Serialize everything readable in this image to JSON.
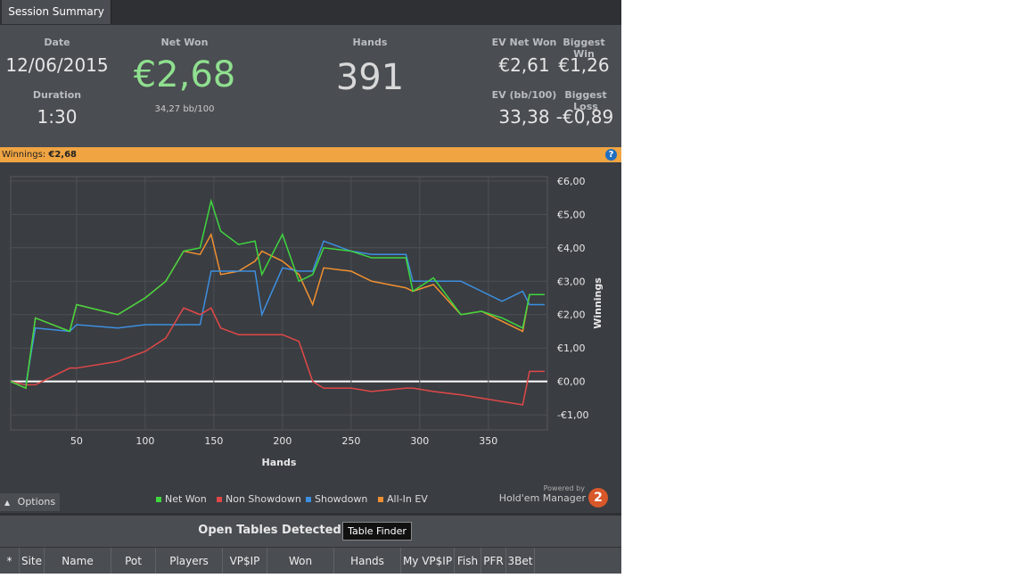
{
  "tab": "Session Summary",
  "summary": {
    "date_label": "Date",
    "date": "12/06/2015",
    "duration_label": "Duration",
    "duration": "1:30",
    "net_won_label": "Net Won",
    "net_won": "€2,68",
    "net_won_bb": "34,27 bb/100",
    "hands_label": "Hands",
    "hands": "391",
    "ev_net_won_label": "EV Net Won",
    "ev_net_won": "€2,61",
    "biggest_win_label": "Biggest Win",
    "biggest_win": "€1,26",
    "ev_bb_label": "EV (bb/100)",
    "ev_bb": "33,38",
    "biggest_loss_label": "Biggest Loss",
    "biggest_loss": "-€0,89"
  },
  "winnings_bar": {
    "label": "Winnings:",
    "value": "€2,68"
  },
  "chart_data": {
    "type": "line",
    "x_label": "Hands",
    "y_label": "Winnings",
    "x": [
      2,
      13,
      20,
      45,
      50,
      80,
      100,
      115,
      128,
      140,
      148,
      155,
      168,
      180,
      185,
      200,
      212,
      222,
      230,
      250,
      265,
      290,
      295,
      310,
      330,
      345,
      360,
      375,
      380,
      391
    ],
    "series": [
      {
        "name": "Net Won",
        "color": "#3fd63f",
        "values": [
          0,
          -0.2,
          1.9,
          1.5,
          2.3,
          2.0,
          2.5,
          3.0,
          3.9,
          4.0,
          5.4,
          4.5,
          4.1,
          4.2,
          3.2,
          4.4,
          3.0,
          3.2,
          4.0,
          3.9,
          3.7,
          3.7,
          2.7,
          3.1,
          2.0,
          2.1,
          1.9,
          1.6,
          2.6,
          2.6
        ]
      },
      {
        "name": "Non Showdown",
        "color": "#e04848",
        "values": [
          0,
          -0.1,
          -0.1,
          0.4,
          0.4,
          0.6,
          0.9,
          1.3,
          2.2,
          2.0,
          2.2,
          1.6,
          1.4,
          1.4,
          1.4,
          1.4,
          1.2,
          0.0,
          -0.2,
          -0.2,
          -0.3,
          -0.2,
          -0.2,
          -0.3,
          -0.4,
          -0.5,
          -0.6,
          -0.7,
          0.3,
          0.3
        ]
      },
      {
        "name": "Showdown",
        "color": "#3d8fe0",
        "values": [
          0,
          -0.1,
          1.6,
          1.5,
          1.7,
          1.6,
          1.7,
          1.7,
          1.7,
          1.7,
          3.3,
          3.3,
          3.3,
          3.3,
          2.0,
          3.4,
          3.3,
          3.3,
          4.2,
          3.9,
          3.8,
          3.8,
          3.0,
          3.0,
          3.0,
          2.7,
          2.4,
          2.7,
          2.3,
          2.3
        ]
      },
      {
        "name": "All-In EV",
        "color": "#f09030",
        "values": [
          0,
          -0.2,
          1.9,
          1.5,
          2.3,
          2.0,
          2.5,
          3.0,
          3.9,
          3.8,
          4.4,
          3.2,
          3.3,
          3.6,
          3.9,
          3.6,
          3.2,
          2.3,
          3.4,
          3.3,
          3.0,
          2.8,
          2.7,
          2.9,
          2.0,
          2.1,
          1.8,
          1.5,
          2.6,
          2.6
        ]
      }
    ],
    "xlim": [
      2,
      393
    ],
    "xticks": [
      50,
      100,
      150,
      200,
      250,
      300,
      350
    ],
    "ylim": [
      -1.45,
      6.13
    ],
    "yticks": [
      {
        "value": -1,
        "label": "-€1,00"
      },
      {
        "value": 0,
        "label": "€0,00"
      },
      {
        "value": 1,
        "label": "€1,00"
      },
      {
        "value": 2,
        "label": "€2,00"
      },
      {
        "value": 3,
        "label": "€3,00"
      },
      {
        "value": 4,
        "label": "€4,00"
      },
      {
        "value": 5,
        "label": "€5,00"
      },
      {
        "value": 6,
        "label": "€6,00"
      }
    ],
    "grid": true
  },
  "footer": {
    "options": "Options",
    "powered_by": "Powered by",
    "brand": "Hold'em Manager",
    "badge": "2"
  },
  "open_tables": {
    "title": "Open Tables Detected",
    "button": "Table Finder",
    "columns": [
      "*",
      "Site",
      "Name",
      "Pot",
      "Players",
      "VP$IP",
      "Won",
      "Hands",
      "My VP$IP",
      "Fish",
      "PFR",
      "3Bet"
    ]
  }
}
